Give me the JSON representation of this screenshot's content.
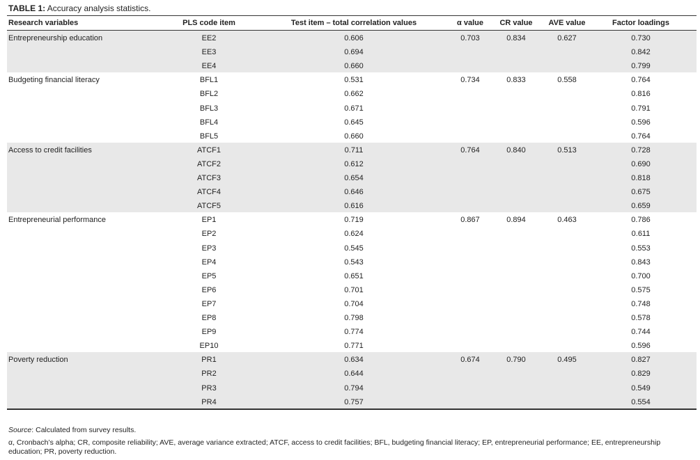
{
  "title_label": "TABLE 1:",
  "title_text": "Accuracy analysis statistics.",
  "table": {
    "columns": [
      "Research variables",
      "PLS code item",
      "Test item – total correlation values",
      "α value",
      "CR value",
      "AVE value",
      "Factor loadings"
    ],
    "groups": [
      {
        "variable": "Entrepreneurship education",
        "alpha": "0.703",
        "cr": "0.834",
        "ave": "0.627",
        "rows": [
          [
            "EE2",
            "0.606",
            "0.730"
          ],
          [
            "EE3",
            "0.694",
            "0.842"
          ],
          [
            "EE4",
            "0.660",
            "0.799"
          ]
        ]
      },
      {
        "variable": "Budgeting financial literacy",
        "alpha": "0.734",
        "cr": "0.833",
        "ave": "0.558",
        "rows": [
          [
            "BFL1",
            "0.531",
            "0.764"
          ],
          [
            "BFL2",
            "0.662",
            "0.816"
          ],
          [
            "BFL3",
            "0.671",
            "0.791"
          ],
          [
            "BFL4",
            "0.645",
            "0.596"
          ],
          [
            "BFL5",
            "0.660",
            "0.764"
          ]
        ]
      },
      {
        "variable": "Access to credit facilities",
        "alpha": "0.764",
        "cr": "0.840",
        "ave": "0.513",
        "rows": [
          [
            "ATCF1",
            "0.711",
            "0.728"
          ],
          [
            "ATCF2",
            "0.612",
            "0.690"
          ],
          [
            "ATCF3",
            "0.654",
            "0.818"
          ],
          [
            "ATCF4",
            "0.646",
            "0.675"
          ],
          [
            "ATCF5",
            "0.616",
            "0.659"
          ]
        ]
      },
      {
        "variable": "Entrepreneurial performance",
        "alpha": "0.867",
        "cr": "0.894",
        "ave": "0.463",
        "rows": [
          [
            "EP1",
            "0.719",
            "0.786"
          ],
          [
            "EP2",
            "0.624",
            "0.611"
          ],
          [
            "EP3",
            "0.545",
            "0.553"
          ],
          [
            "EP4",
            "0.543",
            "0.843"
          ],
          [
            "EP5",
            "0.651",
            "0.700"
          ],
          [
            "EP6",
            "0.701",
            "0.575"
          ],
          [
            "EP7",
            "0.704",
            "0.748"
          ],
          [
            "EP8",
            "0.798",
            "0.578"
          ],
          [
            "EP9",
            "0.774",
            "0.744"
          ],
          [
            "EP10",
            "0.771",
            "0.596"
          ]
        ]
      },
      {
        "variable": "Poverty reduction",
        "alpha": "0.674",
        "cr": "0.790",
        "ave": "0.495",
        "rows": [
          [
            "PR1",
            "0.634",
            "0.827"
          ],
          [
            "PR2",
            "0.644",
            "0.829"
          ],
          [
            "PR3",
            "0.794",
            "0.549"
          ],
          [
            "PR4",
            "0.757",
            "0.554"
          ]
        ]
      }
    ]
  },
  "source_label": "Source",
  "source_text": ": Calculated from survey results.",
  "note": "α, Cronbach’s alpha; CR, composite reliability; AVE, average variance extracted; ATCF, access to credit facilities; BFL, budgeting financial literacy; EP, entrepreneurial performance; EE, entrepreneurship education; PR, poverty reduction."
}
